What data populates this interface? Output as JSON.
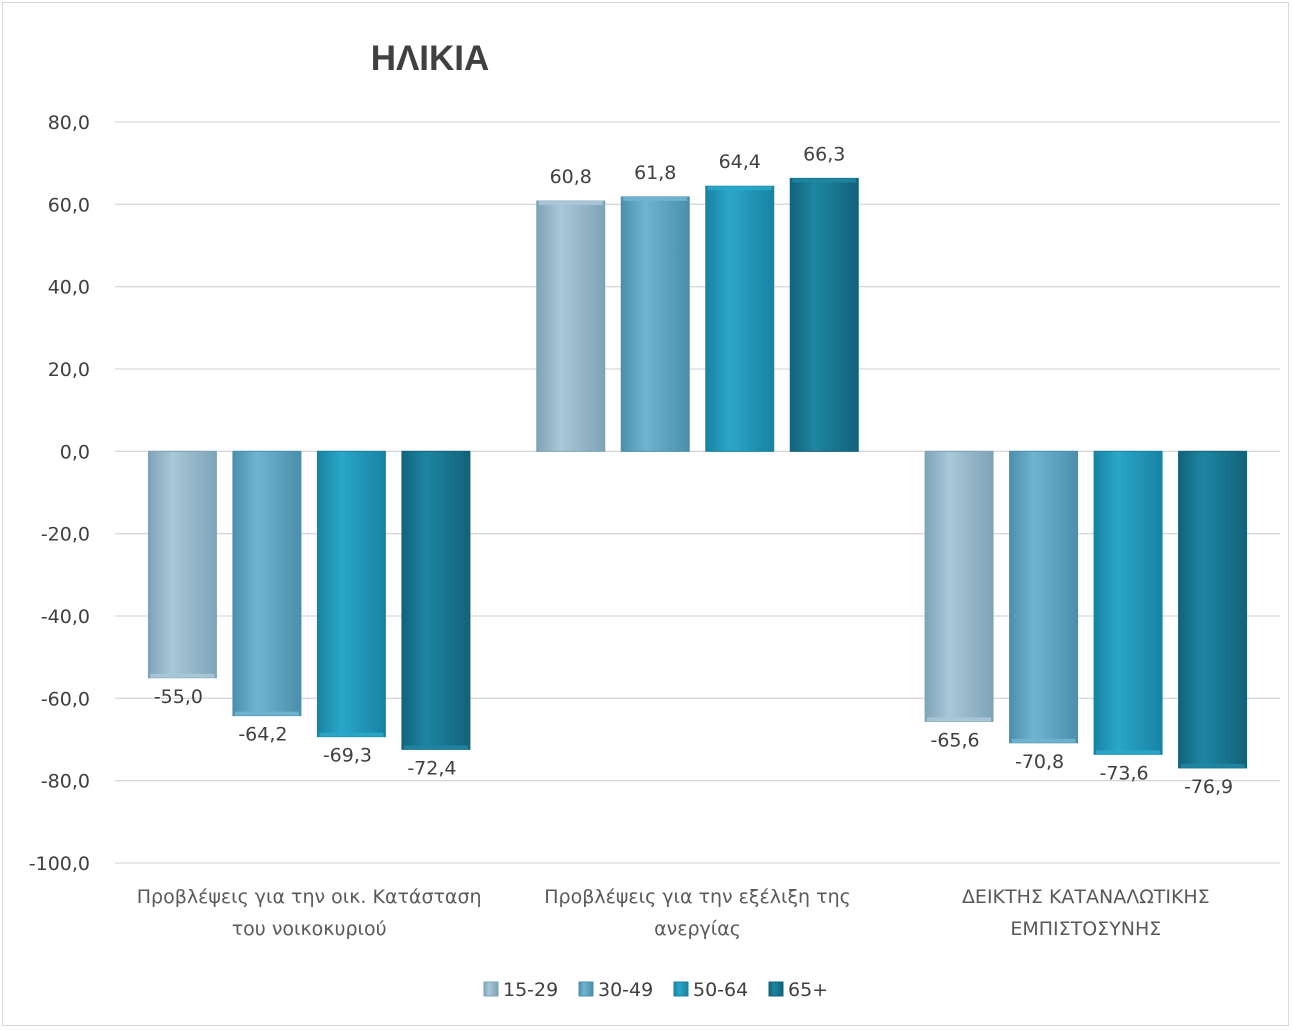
{
  "chart_data": {
    "type": "bar",
    "title": "ΗΛΙΚΙΑ",
    "categories": [
      [
        "Προβλέψεις για την οικ. Κατάσταση",
        "του νοικοκυριού"
      ],
      [
        "Προβλέψεις για την εξέλιξη της",
        "ανεργίας"
      ],
      [
        "ΔΕΙΚΤΗΣ ΚΑΤΑΝΑΛΩΤΙΚΗΣ",
        "ΕΜΠΙΣΤΟΣΥΝΗΣ"
      ]
    ],
    "series": [
      {
        "name": "15-29",
        "values": [
          -55.0,
          60.8,
          -65.6
        ],
        "labels": [
          "-55,0",
          "60,8",
          "-65,6"
        ],
        "color": "#a9c8d8",
        "color_dark": "#7ea3b7"
      },
      {
        "name": "30-49",
        "values": [
          -64.2,
          61.8,
          -70.8
        ],
        "labels": [
          "-64,2",
          "61,8",
          "-70,8"
        ],
        "color": "#6fb4d0",
        "color_dark": "#4a8fac"
      },
      {
        "name": "50-64",
        "values": [
          -69.3,
          64.4,
          -73.6
        ],
        "labels": [
          "-69,3",
          "64,4",
          "-73,6"
        ],
        "color": "#2aa6c8",
        "color_dark": "#1883a3"
      },
      {
        "name": "65+",
        "values": [
          -72.4,
          66.3,
          -76.9
        ],
        "labels": [
          "-72,4",
          "66,3",
          "-76,9"
        ],
        "color": "#1e86a2",
        "color_dark": "#12627a"
      }
    ],
    "ylim": [
      -100,
      80
    ],
    "yticks": [
      80,
      60,
      40,
      20,
      0,
      -20,
      -40,
      -60,
      -80,
      -100
    ],
    "ytick_labels": [
      "80,0",
      "60,0",
      "40,0",
      "20,0",
      "0,0",
      "-20,0",
      "-40,0",
      "-60,0",
      "-80,0",
      "-100,0"
    ],
    "grid": true,
    "legend": "bottom"
  }
}
